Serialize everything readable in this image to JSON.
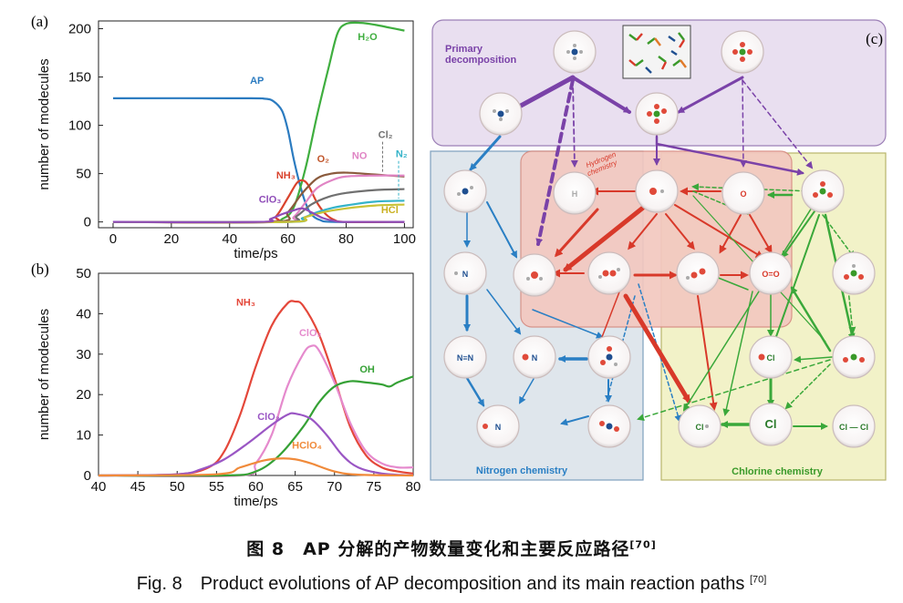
{
  "chart_data": [
    {
      "panel": "(a)",
      "type": "line",
      "xlabel": "time/ps",
      "ylabel": "number of modecules",
      "xlim": [
        -5,
        103
      ],
      "ylim": [
        -6,
        208
      ],
      "xticks": [
        0,
        20,
        40,
        60,
        80,
        100
      ],
      "yticks": [
        0,
        50,
        100,
        150,
        200
      ],
      "series": [
        {
          "name": "AP",
          "color": "#2b7bc0",
          "points": [
            [
              0,
              128
            ],
            [
              45,
              128
            ],
            [
              52,
              127.5
            ],
            [
              55,
              125
            ],
            [
              58,
              115
            ],
            [
              60,
              95
            ],
            [
              62,
              65
            ],
            [
              64,
              40
            ],
            [
              66,
              20
            ],
            [
              68,
              8
            ],
            [
              71,
              2
            ],
            [
              76,
              0
            ],
            [
              100,
              0
            ]
          ]
        },
        {
          "name": "H2O",
          "color": "#3fae3f",
          "points": [
            [
              0,
              0
            ],
            [
              52,
              0
            ],
            [
              58,
              3
            ],
            [
              62,
              15
            ],
            [
              66,
              55
            ],
            [
              70,
              110
            ],
            [
              74,
              160
            ],
            [
              77,
              195
            ],
            [
              80,
              205
            ],
            [
              85,
              206
            ],
            [
              90,
              204
            ],
            [
              95,
              201
            ],
            [
              100,
              198
            ]
          ]
        },
        {
          "name": "NH3",
          "color": "#d9432d",
          "points": [
            [
              0,
              0
            ],
            [
              52,
              0
            ],
            [
              56,
              6
            ],
            [
              60,
              25
            ],
            [
              63,
              40
            ],
            [
              65,
              43
            ],
            [
              67,
              38
            ],
            [
              70,
              20
            ],
            [
              73,
              8
            ],
            [
              76,
              2
            ],
            [
              80,
              0
            ],
            [
              100,
              0
            ]
          ]
        },
        {
          "name": "O2",
          "color": "#8a5a3c",
          "points": [
            [
              0,
              0
            ],
            [
              55,
              0
            ],
            [
              60,
              10
            ],
            [
              65,
              30
            ],
            [
              70,
              45
            ],
            [
              75,
              50
            ],
            [
              80,
              51
            ],
            [
              90,
              49
            ],
            [
              100,
              47
            ]
          ]
        },
        {
          "name": "NO",
          "color": "#e084c4",
          "points": [
            [
              0,
              0
            ],
            [
              58,
              0
            ],
            [
              62,
              5
            ],
            [
              66,
              20
            ],
            [
              70,
              35
            ],
            [
              75,
              43
            ],
            [
              80,
              47
            ],
            [
              90,
              48
            ],
            [
              100,
              48
            ]
          ]
        },
        {
          "name": "Cl2",
          "color": "#707070",
          "points": [
            [
              0,
              0
            ],
            [
              58,
              0
            ],
            [
              63,
              6
            ],
            [
              68,
              18
            ],
            [
              74,
              26
            ],
            [
              80,
              30
            ],
            [
              90,
              33
            ],
            [
              100,
              34
            ]
          ]
        },
        {
          "name": "N2",
          "color": "#34b3c9",
          "points": [
            [
              0,
              0
            ],
            [
              60,
              0
            ],
            [
              65,
              4
            ],
            [
              70,
              10
            ],
            [
              76,
              15
            ],
            [
              82,
              18
            ],
            [
              90,
              21
            ],
            [
              100,
              22
            ]
          ]
        },
        {
          "name": "HCl",
          "color": "#c9c236",
          "points": [
            [
              0,
              0
            ],
            [
              60,
              0
            ],
            [
              66,
              5
            ],
            [
              72,
              10
            ],
            [
              80,
              14
            ],
            [
              90,
              17
            ],
            [
              100,
              18
            ]
          ]
        },
        {
          "name": "ClO3",
          "color": "#8f4cb8",
          "points": [
            [
              0,
              0
            ],
            [
              50,
              0
            ],
            [
              54,
              3
            ],
            [
              58,
              8
            ],
            [
              62,
              12
            ],
            [
              65,
              14
            ],
            [
              68,
              10
            ],
            [
              72,
              4
            ],
            [
              76,
              1
            ],
            [
              80,
              0
            ],
            [
              100,
              0
            ]
          ]
        }
      ],
      "labels": [
        {
          "text": "AP",
          "x": 47,
          "y": 143,
          "color": "#2b7bc0"
        },
        {
          "text": "H₂O",
          "x": 84,
          "y": 188,
          "color": "#3fae3f"
        },
        {
          "text": "O₂",
          "x": 70,
          "y": 62,
          "color": "#c0552a"
        },
        {
          "text": "NH₃",
          "x": 56,
          "y": 45,
          "color": "#d9432d"
        },
        {
          "text": "NO",
          "x": 82,
          "y": 65,
          "color": "#e084c4"
        },
        {
          "text": "Cl₂",
          "x": 91,
          "y": 87,
          "color": "#707070"
        },
        {
          "text": "N₂",
          "x": 97,
          "y": 67,
          "color": "#34b3c9"
        },
        {
          "text": "ClO₃",
          "x": 50,
          "y": 20,
          "color": "#8f4cb8"
        },
        {
          "text": "HCl",
          "x": 92,
          "y": 9,
          "color": "#c9b020"
        }
      ]
    },
    {
      "panel": "(b)",
      "type": "line",
      "xlabel": "time/ps",
      "ylabel": "number of modecules",
      "xlim": [
        40,
        80
      ],
      "ylim": [
        0,
        50
      ],
      "xticks": [
        40,
        45,
        50,
        55,
        60,
        65,
        70,
        75,
        80
      ],
      "yticks": [
        0,
        10,
        20,
        30,
        40,
        50
      ],
      "series": [
        {
          "name": "NH3",
          "color": "#e4473a",
          "points": [
            [
              40,
              0
            ],
            [
              50,
              0.3
            ],
            [
              54,
              2
            ],
            [
              56,
              6
            ],
            [
              58,
              15
            ],
            [
              60,
              27
            ],
            [
              62,
              37
            ],
            [
              64,
              42.5
            ],
            [
              65,
              43
            ],
            [
              66,
              42
            ],
            [
              68,
              35
            ],
            [
              70,
              24
            ],
            [
              72,
              12
            ],
            [
              74,
              5
            ],
            [
              76,
              2
            ],
            [
              78,
              1
            ],
            [
              80,
              0.5
            ]
          ]
        },
        {
          "name": "ClO2",
          "color": "#e58acd",
          "points": [
            [
              40,
              0
            ],
            [
              58,
              0
            ],
            [
              60,
              3
            ],
            [
              62,
              10
            ],
            [
              64,
              22
            ],
            [
              66,
              30
            ],
            [
              67,
              32
            ],
            [
              68,
              31
            ],
            [
              70,
              23
            ],
            [
              72,
              13
            ],
            [
              74,
              6
            ],
            [
              76,
              3
            ],
            [
              78,
              2
            ],
            [
              80,
              2
            ]
          ]
        },
        {
          "name": "OH",
          "color": "#35a135",
          "points": [
            [
              40,
              0
            ],
            [
              56,
              0
            ],
            [
              60,
              1
            ],
            [
              63,
              5
            ],
            [
              66,
              12
            ],
            [
              68,
              18
            ],
            [
              70,
              22
            ],
            [
              72,
              23.3
            ],
            [
              74,
              23
            ],
            [
              76,
              22.5
            ],
            [
              77,
              22
            ],
            [
              78,
              23
            ],
            [
              80,
              24.5
            ]
          ]
        },
        {
          "name": "ClO3",
          "color": "#9a56c4",
          "points": [
            [
              40,
              0
            ],
            [
              50,
              0.3
            ],
            [
              53,
              1.5
            ],
            [
              56,
              4
            ],
            [
              59,
              8
            ],
            [
              62,
              12.5
            ],
            [
              64,
              15
            ],
            [
              65,
              15.3
            ],
            [
              67,
              14
            ],
            [
              69,
              10
            ],
            [
              71,
              5
            ],
            [
              73,
              2
            ],
            [
              76,
              0.5
            ],
            [
              80,
              0
            ]
          ]
        },
        {
          "name": "HClO4",
          "color": "#f08a3a",
          "points": [
            [
              40,
              0
            ],
            [
              55,
              0.3
            ],
            [
              58,
              2
            ],
            [
              61,
              3.7
            ],
            [
              63,
              4.2
            ],
            [
              65,
              4
            ],
            [
              67,
              3
            ],
            [
              70,
              1
            ],
            [
              73,
              0.2
            ],
            [
              80,
              0
            ]
          ]
        }
      ],
      "labels": [
        {
          "text": "NH₃",
          "x": 57.5,
          "y": 42,
          "color": "#e4473a"
        },
        {
          "text": "ClO₂",
          "x": 65.5,
          "y": 34.5,
          "color": "#e58acd"
        },
        {
          "text": "OH",
          "x": 73.2,
          "y": 25.5,
          "color": "#35a135"
        },
        {
          "text": "ClO₃",
          "x": 60.2,
          "y": 13.7,
          "color": "#9a56c4"
        },
        {
          "text": "HClO₄",
          "x": 64.6,
          "y": 6.7,
          "color": "#f08a3a"
        }
      ]
    }
  ],
  "diagram": {
    "panel": "(c)",
    "regions": {
      "primary": "Primary\ndecomposition",
      "hydrogen": "Hydrogen\nchemistry",
      "nitrogen": "Nitrogen chemistry",
      "chlorine": "Chlorine chemistry"
    },
    "species": [
      {
        "id": "ap_n",
        "label": "",
        "icon": "nh4-cluster"
      },
      {
        "id": "ap_cl",
        "label": "",
        "icon": "clo4-cluster"
      },
      {
        "id": "nh3",
        "label": "",
        "icon": "nh3-molecule"
      },
      {
        "id": "hclo4",
        "label": "",
        "icon": "hclo4-molecule"
      },
      {
        "id": "nh2",
        "label": "",
        "icon": "nh2-radical"
      },
      {
        "id": "h",
        "label": "H",
        "icon": "h-atom"
      },
      {
        "id": "oh",
        "label": "",
        "icon": "oh-radical"
      },
      {
        "id": "o",
        "label": "O",
        "icon": "o-atom"
      },
      {
        "id": "clo3",
        "label": "",
        "icon": "clo3-molecule"
      },
      {
        "id": "nh",
        "label": "N",
        "icon": "nh-radical"
      },
      {
        "id": "h2o",
        "label": "",
        "icon": "h2o-molecule"
      },
      {
        "id": "h2o2",
        "label": "",
        "icon": "h2o2-molecule"
      },
      {
        "id": "ho2",
        "label": "",
        "icon": "ho2-molecule"
      },
      {
        "id": "o2",
        "label": "O=O",
        "icon": "o2-molecule"
      },
      {
        "id": "clo2b",
        "label": "",
        "icon": "clo2-molecule"
      },
      {
        "id": "n2",
        "label": "N≡N",
        "icon": "n2-molecule"
      },
      {
        "id": "no",
        "label": "N",
        "icon": "no-molecule"
      },
      {
        "id": "hno2",
        "label": "",
        "icon": "hno2-molecule"
      },
      {
        "id": "clo",
        "label": "Cl",
        "icon": "clo-radical"
      },
      {
        "id": "clo2",
        "label": "",
        "icon": "clo2-radical"
      },
      {
        "id": "n2o",
        "label": "N",
        "icon": "n2o-molecule"
      },
      {
        "id": "no2",
        "label": "",
        "icon": "no2-molecule"
      },
      {
        "id": "hcl",
        "label": "Cl",
        "icon": "hcl-molecule"
      },
      {
        "id": "cl",
        "label": "Cl",
        "icon": "cl-atom"
      },
      {
        "id": "cl2",
        "label": "Cl — Cl",
        "icon": "cl2-molecule"
      }
    ]
  },
  "caption": {
    "cn": "图 8　AP 分解的产物数量变化和主要反应路径",
    "en": "Fig. 8　Product evolutions of AP decomposition and its main reaction paths ",
    "ref": "[70]"
  }
}
